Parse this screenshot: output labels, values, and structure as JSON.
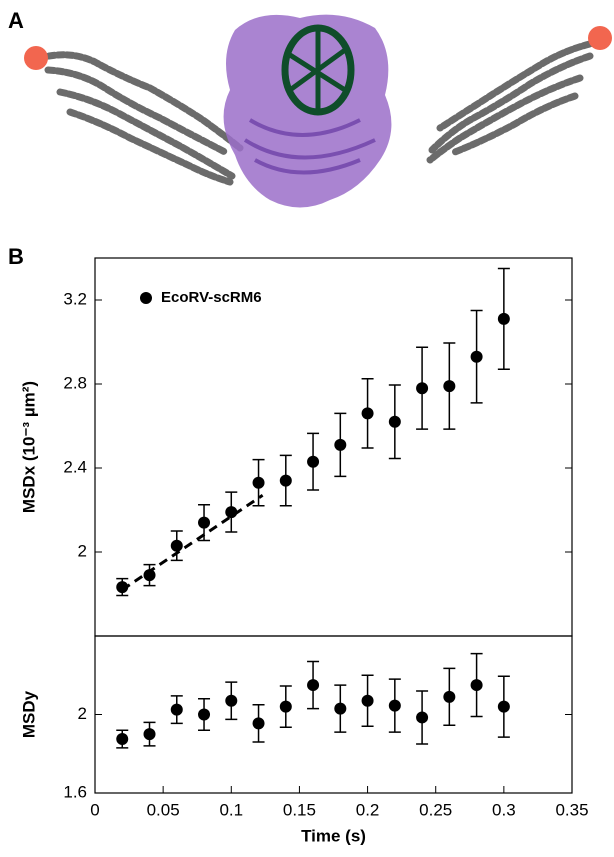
{
  "panel_labels": [
    "A",
    "B"
  ],
  "chart_data": [
    {
      "type": "scatter",
      "y_label": "MSDx (10⁻³ µm²)",
      "xlim": [
        0,
        0.35
      ],
      "ylim": [
        1.6,
        3.4
      ],
      "yticks": [
        2,
        2.4,
        2.8,
        3.2
      ],
      "legend": "upper left",
      "series": [
        {
          "name": "EcoRV-scRM6",
          "color": "#000000",
          "x": [
            0.02,
            0.04,
            0.06,
            0.08,
            0.1,
            0.12,
            0.14,
            0.16,
            0.18,
            0.2,
            0.22,
            0.24,
            0.26,
            0.28,
            0.3
          ],
          "values": [
            1.833,
            1.89,
            2.03,
            2.14,
            2.19,
            2.33,
            2.34,
            2.43,
            2.51,
            2.66,
            2.62,
            2.78,
            2.79,
            2.93,
            3.11
          ],
          "errors": [
            0.04,
            0.05,
            0.07,
            0.085,
            0.095,
            0.11,
            0.12,
            0.135,
            0.15,
            0.165,
            0.175,
            0.195,
            0.205,
            0.22,
            0.24
          ]
        },
        {
          "color": "#000000",
          "style": "dashed",
          "x": [
            0.02,
            0.123
          ],
          "values": [
            1.82,
            2.27
          ]
        }
      ]
    },
    {
      "type": "scatter",
      "x_label": "Time (s)",
      "y_label": "MSDy",
      "xlim": [
        0,
        0.35
      ],
      "xticks": [
        0,
        0.05,
        0.1,
        0.15,
        0.2,
        0.25,
        0.3,
        0.35
      ],
      "ylim": [
        1.6,
        2.4
      ],
      "yticks": [
        1.6,
        2
      ],
      "series": [
        {
          "color": "#000000",
          "x": [
            0.02,
            0.04,
            0.06,
            0.08,
            0.1,
            0.12,
            0.14,
            0.16,
            0.18,
            0.2,
            0.22,
            0.24,
            0.26,
            0.28,
            0.3
          ],
          "values": [
            1.875,
            1.9,
            2.025,
            2.0,
            2.07,
            1.955,
            2.04,
            2.15,
            2.03,
            2.07,
            2.045,
            1.985,
            2.09,
            2.15,
            2.04
          ],
          "errors": [
            0.045,
            0.06,
            0.07,
            0.08,
            0.095,
            0.095,
            0.105,
            0.12,
            0.12,
            0.13,
            0.135,
            0.135,
            0.145,
            0.16,
            0.155
          ]
        }
      ]
    }
  ]
}
